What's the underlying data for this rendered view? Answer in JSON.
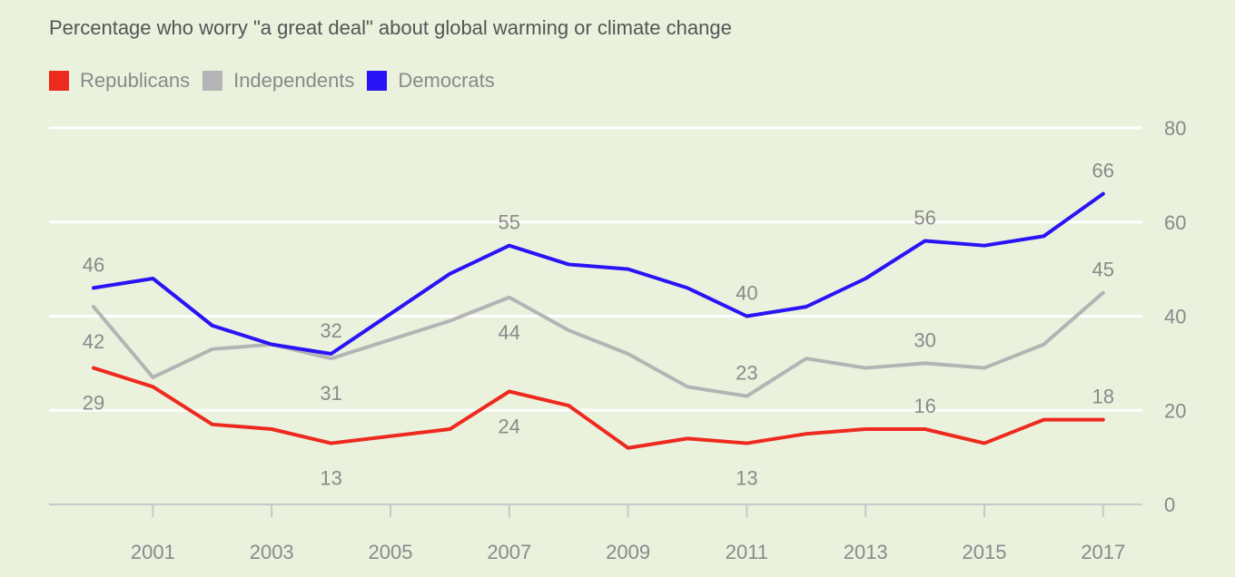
{
  "chart_data": {
    "type": "line",
    "title": "Percentage who worry \"a great deal\" about global warming or climate change",
    "x": [
      2000,
      2001,
      2002,
      2003,
      2004,
      2005,
      2006,
      2007,
      2008,
      2009,
      2010,
      2011,
      2012,
      2013,
      2014,
      2015,
      2016,
      2017
    ],
    "x_ticks": [
      2001,
      2003,
      2005,
      2007,
      2009,
      2011,
      2013,
      2015,
      2017
    ],
    "y_ticks": [
      0,
      20,
      40,
      60,
      80
    ],
    "ylim": [
      0,
      80
    ],
    "grid": true,
    "legend_position": "top-left",
    "y_axis_side": "right",
    "series": [
      {
        "name": "Republicans",
        "color": "#ee2a1f",
        "values": [
          29,
          25,
          17,
          16,
          13,
          14.5,
          16,
          24,
          21,
          12,
          14,
          13,
          15,
          16,
          16,
          13,
          18,
          18
        ],
        "labels": [
          {
            "x": 2000,
            "value": 29,
            "pos": "below"
          },
          {
            "x": 2004,
            "value": 13,
            "pos": "below"
          },
          {
            "x": 2007,
            "value": 24,
            "pos": "below"
          },
          {
            "x": 2011,
            "value": 13,
            "pos": "below"
          },
          {
            "x": 2014,
            "value": 16,
            "pos": "above"
          },
          {
            "x": 2017,
            "value": 18,
            "pos": "above"
          }
        ]
      },
      {
        "name": "Independents",
        "color": "#b4b4b4",
        "values": [
          42,
          27,
          33,
          34,
          31,
          35,
          39,
          44,
          37,
          32,
          25,
          23,
          31,
          29,
          30,
          29,
          34,
          45
        ],
        "labels": [
          {
            "x": 2000,
            "value": 42,
            "pos": "below"
          },
          {
            "x": 2004,
            "value": 31,
            "pos": "below"
          },
          {
            "x": 2007,
            "value": 44,
            "pos": "below"
          },
          {
            "x": 2011,
            "value": 23,
            "pos": "above"
          },
          {
            "x": 2014,
            "value": 30,
            "pos": "above"
          },
          {
            "x": 2017,
            "value": 45,
            "pos": "above"
          }
        ]
      },
      {
        "name": "Democrats",
        "color": "#2a14f5",
        "values": [
          46,
          48,
          38,
          34,
          32,
          40.5,
          49,
          55,
          51,
          50,
          46,
          40,
          42,
          48,
          56,
          55,
          57,
          66
        ],
        "labels": [
          {
            "x": 2000,
            "value": 46,
            "pos": "above"
          },
          {
            "x": 2004,
            "value": 32,
            "pos": "above"
          },
          {
            "x": 2007,
            "value": 55,
            "pos": "above"
          },
          {
            "x": 2011,
            "value": 40,
            "pos": "above"
          },
          {
            "x": 2014,
            "value": 56,
            "pos": "above"
          },
          {
            "x": 2017,
            "value": 66,
            "pos": "above"
          }
        ]
      }
    ]
  }
}
